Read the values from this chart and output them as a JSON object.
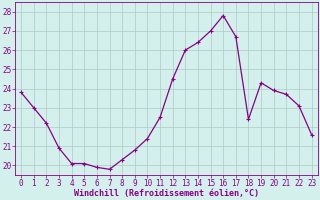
{
  "x": [
    0,
    1,
    2,
    3,
    4,
    5,
    6,
    7,
    8,
    9,
    10,
    11,
    12,
    13,
    14,
    15,
    16,
    17,
    18,
    19,
    20,
    21,
    22,
    23
  ],
  "y": [
    23.8,
    23.0,
    22.2,
    20.9,
    20.1,
    20.1,
    19.9,
    19.8,
    20.3,
    20.8,
    21.4,
    22.5,
    24.5,
    26.0,
    26.4,
    27.0,
    27.8,
    26.7,
    22.4,
    24.3,
    23.9,
    23.7,
    23.1,
    21.6
  ],
  "line_color": "#880088",
  "marker": "+",
  "marker_size": 3,
  "bg_color": "#d4f0ec",
  "grid_color": "#b0c8c4",
  "xlim": [
    -0.5,
    23.5
  ],
  "ylim": [
    19.5,
    28.5
  ],
  "yticks": [
    20,
    21,
    22,
    23,
    24,
    25,
    26,
    27,
    28
  ],
  "xticks": [
    0,
    1,
    2,
    3,
    4,
    5,
    6,
    7,
    8,
    9,
    10,
    11,
    12,
    13,
    14,
    15,
    16,
    17,
    18,
    19,
    20,
    21,
    22,
    23
  ],
  "xlabel": "Windchill (Refroidissement éolien,°C)",
  "xlabel_color": "#880088",
  "tick_color": "#880088",
  "axis_color": "#880088",
  "tick_fontsize": 5.5,
  "xlabel_fontsize": 6.0
}
